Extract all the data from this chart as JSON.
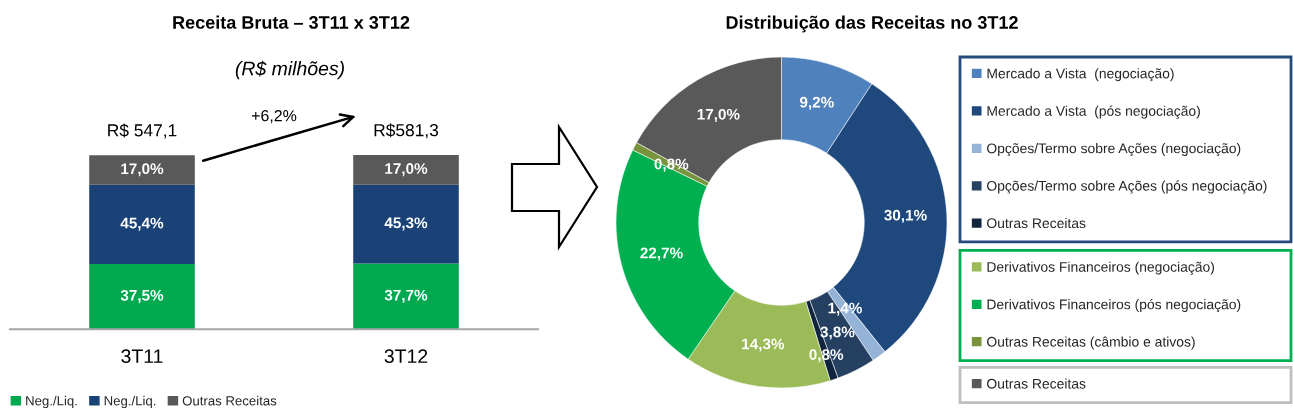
{
  "chart_data": [
    {
      "type": "bar",
      "title": "Receita Bruta – 3T11 x 3T12",
      "subtitle": "(R$ milhões)",
      "categories": [
        "3T11",
        "3T12"
      ],
      "stacked": true,
      "series": [
        {
          "name": "Neg./Liq.",
          "color": "#00a84f",
          "values": [
            37.5,
            37.7
          ],
          "value_labels": [
            "37,5%",
            "37,7%"
          ]
        },
        {
          "name": "Neg./Liq.",
          "color": "#1a4277",
          "values": [
            45.4,
            45.3
          ],
          "value_labels": [
            "45,4%",
            "45,3%"
          ]
        },
        {
          "name": "Outras Receitas",
          "color": "#595959",
          "values": [
            17.0,
            17.0
          ],
          "value_labels": [
            "17,0%",
            "17,0%"
          ]
        }
      ],
      "totals": [
        "R$ 547,1",
        "R$581,3"
      ],
      "annotations": [
        "+6,2%"
      ],
      "legend": "bottom",
      "tick_labels": "x"
    },
    {
      "type": "donut",
      "title": "Distribuição das Receitas no 3T12",
      "categories": [
        "Mercado a Vista  (negociação)",
        "Mercado a Vista  (pós negociação)",
        "Opções/Termo sobre Ações (negociação)",
        "Opções/Termo sobre Ações (pós negociação)",
        "Outras Receitas",
        "Derivativos Financeiros (negociação)",
        "Derivativos Financeiros (pós negociação)",
        "Outras Receitas (câmbio e ativos)",
        "Outras Receitas"
      ],
      "values": [
        9.2,
        30.1,
        1.4,
        3.8,
        0.8,
        14.3,
        22.7,
        0.8,
        17.0
      ],
      "colors": [
        "#4f81bd",
        "#1f497d",
        "#95b3d7",
        "#254061",
        "#10243e",
        "#9bbb59",
        "#00b050",
        "#77933c",
        "#595959"
      ],
      "value_labels": [
        "9,2%",
        "30,1%",
        "1,4%",
        "3,8%",
        "0,8%",
        "14,3%",
        "22,7%",
        "0,8%",
        "17,0%"
      ],
      "legend": "right"
    }
  ]
}
